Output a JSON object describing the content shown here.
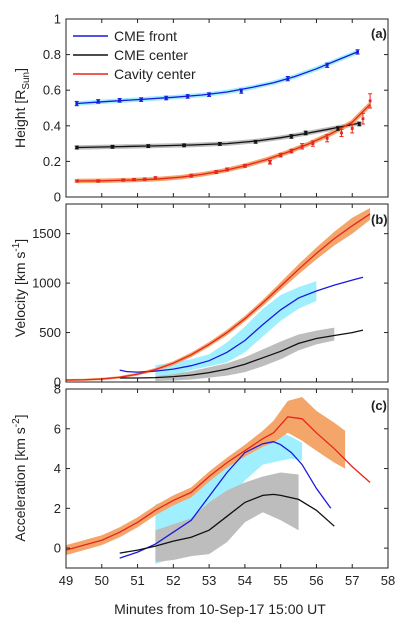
{
  "figure": {
    "xlabel": "Minutes from 10-Sep-17 15:00 UT",
    "xticks": [
      "49",
      "50",
      "51",
      "52",
      "53",
      "54",
      "55",
      "56",
      "57",
      "58"
    ],
    "xlim": [
      49,
      58
    ]
  },
  "colors": {
    "front": "#1a1adc",
    "center": "#111111",
    "cavity": "#e8251c",
    "front_band": "#9fefff",
    "center_band": "#bdbdbd",
    "cavity_band": "#f4a56a"
  },
  "chart_data": [
    {
      "type": "line",
      "panel_label": "(a)",
      "ylabel": "Height [R",
      "ylabel_sub": "Sun",
      "ylabel_tail": "]",
      "ylim": [
        0,
        1
      ],
      "yticks": [
        "0",
        "0.2",
        "0.4",
        "0.6",
        "0.8",
        "1"
      ],
      "grid": false,
      "legend": "top-left",
      "series": [
        {
          "name": "CME front",
          "color_key": "front",
          "points": [
            [
              49.3,
              0.525
            ],
            [
              49.9,
              0.537
            ],
            [
              50.5,
              0.543
            ],
            [
              51.1,
              0.547
            ],
            [
              51.8,
              0.556
            ],
            [
              52.4,
              0.565
            ],
            [
              53.0,
              0.575
            ],
            [
              53.9,
              0.595
            ],
            [
              55.2,
              0.665
            ],
            [
              56.3,
              0.74
            ],
            [
              57.15,
              0.815
            ]
          ],
          "errors": [
            0.012,
            0.01,
            0.01,
            0.01,
            0.01,
            0.01,
            0.01,
            0.012,
            0.012,
            0.012,
            0.012
          ],
          "fit": [
            [
              49.3,
              0.525
            ],
            [
              50.0,
              0.535
            ],
            [
              51.0,
              0.547
            ],
            [
              52.0,
              0.56
            ],
            [
              52.8,
              0.573
            ],
            [
              53.5,
              0.59
            ],
            [
              54.2,
              0.616
            ],
            [
              54.8,
              0.642
            ],
            [
              55.4,
              0.677
            ],
            [
              56.0,
              0.72
            ],
            [
              56.6,
              0.77
            ],
            [
              57.15,
              0.815
            ]
          ]
        },
        {
          "name": "CME center",
          "color_key": "center",
          "points": [
            [
              49.3,
              0.278
            ],
            [
              50.3,
              0.282
            ],
            [
              51.3,
              0.286
            ],
            [
              52.3,
              0.29
            ],
            [
              53.3,
              0.298
            ],
            [
              54.3,
              0.31
            ],
            [
              55.3,
              0.34
            ],
            [
              55.7,
              0.36
            ],
            [
              56.6,
              0.385
            ],
            [
              57.2,
              0.41
            ]
          ],
          "errors": [
            0.008,
            0.008,
            0.008,
            0.008,
            0.008,
            0.008,
            0.01,
            0.01,
            0.01,
            0.01
          ],
          "fit": [
            [
              49.3,
              0.278
            ],
            [
              50.5,
              0.283
            ],
            [
              51.5,
              0.287
            ],
            [
              52.5,
              0.292
            ],
            [
              53.5,
              0.3
            ],
            [
              54.3,
              0.314
            ],
            [
              55.0,
              0.333
            ],
            [
              55.7,
              0.357
            ],
            [
              56.4,
              0.383
            ],
            [
              57.2,
              0.415
            ]
          ]
        },
        {
          "name": "Cavity center",
          "color_key": "cavity",
          "points": [
            [
              49.3,
              0.09
            ],
            [
              49.9,
              0.09
            ],
            [
              50.6,
              0.095
            ],
            [
              50.9,
              0.098
            ],
            [
              51.2,
              0.1
            ],
            [
              51.5,
              0.108
            ],
            [
              52.5,
              0.12
            ],
            [
              53.2,
              0.14
            ],
            [
              53.5,
              0.155
            ],
            [
              54.0,
              0.175
            ],
            [
              54.7,
              0.195
            ],
            [
              55.0,
              0.235
            ],
            [
              55.3,
              0.258
            ],
            [
              55.6,
              0.285
            ],
            [
              55.9,
              0.3
            ],
            [
              56.3,
              0.33
            ],
            [
              56.7,
              0.36
            ],
            [
              57.0,
              0.385
            ],
            [
              57.3,
              0.44
            ],
            [
              57.5,
              0.54
            ]
          ],
          "errors": [
            0.006,
            0.006,
            0.006,
            0.006,
            0.006,
            0.006,
            0.008,
            0.008,
            0.008,
            0.008,
            0.01,
            0.01,
            0.01,
            0.015,
            0.015,
            0.02,
            0.02,
            0.025,
            0.03,
            0.04
          ],
          "fit": [
            [
              49.3,
              0.09
            ],
            [
              50.0,
              0.091
            ],
            [
              50.8,
              0.095
            ],
            [
              51.5,
              0.1
            ],
            [
              52.2,
              0.111
            ],
            [
              52.8,
              0.127
            ],
            [
              53.4,
              0.148
            ],
            [
              54.0,
              0.176
            ],
            [
              54.6,
              0.21
            ],
            [
              55.2,
              0.252
            ],
            [
              55.8,
              0.3
            ],
            [
              56.4,
              0.355
            ],
            [
              57.0,
              0.42
            ],
            [
              57.5,
              0.52
            ]
          ]
        }
      ]
    },
    {
      "type": "line",
      "panel_label": "(b)",
      "ylabel": "Velocity [km s",
      "ylabel_sup": "-1",
      "ylabel_tail": "]",
      "ylim": [
        0,
        1800
      ],
      "yticks": [
        "0",
        "500",
        "1000",
        "1500"
      ],
      "grid": false,
      "series": [
        {
          "color_key": "front",
          "x": [
            50.5,
            50.7,
            51.0,
            51.5,
            52.0,
            52.5,
            53.0,
            53.5,
            54.0,
            54.5,
            55.0,
            55.5,
            56.0,
            56.5,
            57.0,
            57.3
          ],
          "y": [
            120,
            105,
            100,
            110,
            130,
            165,
            215,
            300,
            420,
            580,
            730,
            850,
            920,
            980,
            1030,
            1060
          ],
          "band_x": [
            51.5,
            52.0,
            52.5,
            53.0,
            53.5,
            54.0,
            54.5,
            55.0,
            55.5,
            56.0
          ],
          "band_lo": [
            40,
            70,
            120,
            160,
            200,
            300,
            460,
            620,
            740,
            820
          ],
          "band_hi": [
            170,
            200,
            230,
            280,
            400,
            560,
            740,
            880,
            960,
            1020
          ]
        },
        {
          "color_key": "center",
          "x": [
            50.5,
            51.0,
            51.5,
            52.0,
            52.5,
            53.0,
            53.5,
            54.0,
            54.5,
            55.0,
            55.5,
            56.0,
            56.5,
            57.0,
            57.3
          ],
          "y": [
            40,
            40,
            45,
            55,
            70,
            95,
            130,
            180,
            245,
            310,
            390,
            440,
            470,
            500,
            525
          ],
          "band_x": [
            51.5,
            52.0,
            52.5,
            53.0,
            53.5,
            54.0,
            54.5,
            55.0,
            55.5,
            56.0,
            56.5
          ],
          "band_lo": [
            10,
            15,
            25,
            45,
            65,
            100,
            160,
            230,
            320,
            380,
            420
          ],
          "band_hi": [
            60,
            80,
            110,
            150,
            190,
            250,
            330,
            410,
            480,
            520,
            550
          ]
        },
        {
          "color_key": "cavity",
          "x": [
            49.0,
            49.5,
            50.0,
            50.5,
            51.0,
            51.5,
            52.0,
            52.5,
            53.0,
            53.5,
            54.0,
            54.5,
            55.0,
            55.5,
            56.0,
            56.5,
            57.0,
            57.5
          ],
          "y": [
            20,
            22,
            30,
            48,
            80,
            125,
            190,
            275,
            380,
            500,
            640,
            800,
            970,
            1140,
            1300,
            1450,
            1580,
            1700
          ],
          "band_x": [
            49.0,
            49.5,
            50.0,
            50.5,
            51.0,
            51.5,
            52.0,
            52.5,
            53.0,
            53.5,
            54.0,
            54.5,
            55.0,
            55.5,
            56.0,
            56.5,
            57.0,
            57.5
          ],
          "band_lo": [
            10,
            12,
            18,
            36,
            66,
            108,
            170,
            252,
            356,
            472,
            612,
            768,
            930,
            1090,
            1240,
            1380,
            1500,
            1640
          ],
          "band_hi": [
            30,
            32,
            42,
            60,
            94,
            142,
            210,
            298,
            404,
            528,
            668,
            832,
            1010,
            1190,
            1360,
            1520,
            1660,
            1760
          ]
        }
      ]
    },
    {
      "type": "line",
      "panel_label": "(c)",
      "ylabel": "Acceleration [km s",
      "ylabel_sup": "-2",
      "ylabel_tail": "]",
      "ylim": [
        -1,
        8
      ],
      "yticks": [
        "0",
        "2",
        "4",
        "6",
        "8"
      ],
      "grid": false,
      "series": [
        {
          "color_key": "front",
          "x": [
            50.5,
            51.0,
            51.5,
            52.0,
            52.5,
            53.0,
            53.5,
            54.0,
            54.5,
            54.8,
            55.0,
            55.3,
            55.6,
            56.0,
            56.4
          ],
          "y": [
            -0.5,
            -0.2,
            0.2,
            0.8,
            1.4,
            2.6,
            3.8,
            4.8,
            5.25,
            5.35,
            5.2,
            4.8,
            4.2,
            3.0,
            2.0
          ],
          "band_x": [
            51.5,
            52.0,
            52.5,
            53.0,
            53.5,
            54.0,
            54.5,
            55.0,
            55.3,
            55.6
          ],
          "band_lo": [
            -0.8,
            -0.5,
            0.0,
            1.2,
            2.4,
            3.4,
            4.2,
            4.4,
            4.5,
            4.4
          ],
          "band_hi": [
            2.2,
            2.5,
            2.8,
            3.4,
            4.2,
            5.0,
            5.7,
            5.8,
            5.6,
            5.3
          ]
        },
        {
          "color_key": "center",
          "x": [
            50.5,
            51.0,
            51.5,
            52.0,
            52.5,
            53.0,
            53.5,
            54.0,
            54.5,
            54.8,
            55.0,
            55.5,
            56.0,
            56.5
          ],
          "y": [
            -0.25,
            -0.1,
            0.1,
            0.35,
            0.55,
            0.9,
            1.6,
            2.3,
            2.65,
            2.7,
            2.65,
            2.45,
            1.9,
            1.1
          ],
          "band_x": [
            51.5,
            52.0,
            52.5,
            53.0,
            53.5,
            54.0,
            54.5,
            55.0,
            55.5
          ],
          "band_lo": [
            -0.7,
            -0.6,
            -0.4,
            -0.3,
            0.3,
            1.3,
            1.8,
            1.4,
            0.9
          ],
          "band_hi": [
            0.9,
            1.2,
            1.5,
            2.3,
            2.9,
            3.3,
            3.6,
            3.8,
            3.7
          ]
        },
        {
          "color_key": "cavity",
          "x": [
            49.0,
            49.5,
            50.0,
            50.5,
            51.0,
            51.5,
            52.0,
            52.5,
            53.0,
            53.5,
            54.0,
            54.5,
            54.8,
            55.2,
            55.6,
            56.0,
            56.5,
            57.0,
            57.5
          ],
          "y": [
            -0.1,
            0.15,
            0.4,
            0.8,
            1.3,
            1.9,
            2.4,
            2.8,
            3.6,
            4.3,
            4.9,
            5.5,
            5.8,
            6.6,
            6.5,
            5.8,
            5.0,
            4.1,
            3.3
          ],
          "band_x": [
            49.0,
            49.5,
            50.0,
            50.5,
            51.0,
            51.5,
            52.0,
            52.5,
            53.0,
            53.5,
            54.0,
            54.5,
            54.8,
            55.2,
            55.6,
            56.0,
            56.5,
            56.8
          ],
          "band_lo": [
            -0.35,
            -0.1,
            0.15,
            0.55,
            1.05,
            1.65,
            2.15,
            2.55,
            3.35,
            4.05,
            4.6,
            5.1,
            5.3,
            5.8,
            5.4,
            4.9,
            4.3,
            4.0
          ],
          "band_hi": [
            0.15,
            0.4,
            0.65,
            1.05,
            1.55,
            2.15,
            2.65,
            3.05,
            3.85,
            4.55,
            5.2,
            5.9,
            6.4,
            7.4,
            7.6,
            6.9,
            6.3,
            5.9
          ]
        }
      ]
    }
  ]
}
